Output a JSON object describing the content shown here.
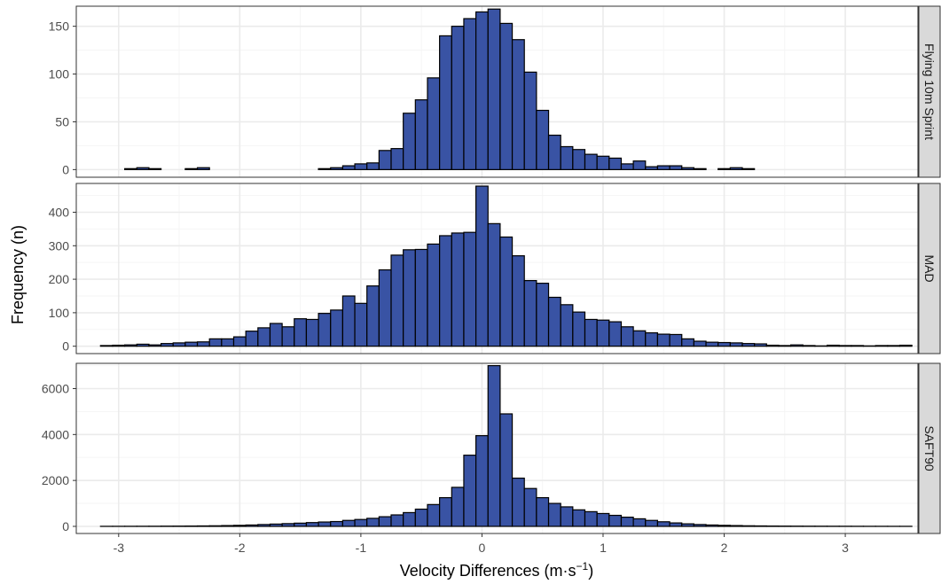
{
  "chart_data": {
    "type": "bar",
    "layout": "faceted histogram, 3 panels stacked vertically, shared x-axis, facet strips on right",
    "xlabel_main": "Velocity Differences (m·s",
    "xlabel_sup": "−1",
    "xlabel_close": ")",
    "ylabel": "Frequency (n)",
    "xlim": [
      -3.35,
      3.6
    ],
    "x_ticks": [
      -3,
      -2,
      -1,
      0,
      1,
      2,
      3
    ],
    "x_tick_labels": [
      "-3",
      "-2",
      "-1",
      "0",
      "1",
      "2",
      "3"
    ],
    "bin_start": -3.15,
    "bin_width": 0.1,
    "grid": true,
    "colors": {
      "fill": "#3953a4",
      "stroke": "#000000",
      "grid_major": "#ebebeb",
      "grid_minor": "#f5f5f5",
      "strip": "#d9d9d9",
      "border": "#333333"
    },
    "panels": [
      {
        "name": "Flying 10m Sprint",
        "ylim": [
          -8,
          171
        ],
        "y_ticks": [
          0,
          50,
          100,
          150
        ],
        "values": [
          0,
          0,
          1,
          2,
          1,
          0,
          0,
          1,
          2,
          0,
          0,
          0,
          0,
          0,
          0,
          0,
          0,
          0,
          1,
          2,
          4,
          6,
          7,
          20,
          22,
          59,
          73,
          96,
          140,
          150,
          158,
          165,
          168,
          153,
          136,
          102,
          62,
          36,
          24,
          21,
          16,
          14,
          12,
          6,
          9,
          3,
          4,
          4,
          2,
          1,
          0,
          1,
          2,
          1,
          0,
          0,
          0,
          0,
          0,
          0,
          0,
          0,
          0,
          0,
          0,
          0,
          0
        ]
      },
      {
        "name": "MAD",
        "ylim": [
          -22,
          486
        ],
        "y_ticks": [
          0,
          100,
          200,
          300,
          400
        ],
        "values": [
          2,
          3,
          4,
          6,
          4,
          8,
          10,
          12,
          13,
          22,
          22,
          28,
          45,
          55,
          68,
          58,
          82,
          80,
          98,
          108,
          150,
          128,
          180,
          228,
          272,
          288,
          289,
          305,
          330,
          338,
          340,
          478,
          366,
          326,
          270,
          196,
          188,
          146,
          124,
          102,
          80,
          78,
          73,
          58,
          46,
          40,
          36,
          35,
          22,
          15,
          12,
          11,
          10,
          8,
          7,
          3,
          2,
          4,
          2,
          1,
          3,
          2,
          2,
          1,
          2,
          2,
          3
        ]
      },
      {
        "name": "SAFT90",
        "ylim": [
          -310,
          7100
        ],
        "y_ticks": [
          0,
          2000,
          4000,
          6000
        ],
        "values": [
          2,
          3,
          4,
          5,
          6,
          10,
          12,
          15,
          20,
          25,
          35,
          45,
          60,
          80,
          100,
          120,
          140,
          165,
          190,
          210,
          260,
          300,
          350,
          420,
          500,
          600,
          750,
          950,
          1250,
          1700,
          3100,
          3950,
          7000,
          4900,
          2100,
          1650,
          1250,
          1000,
          850,
          720,
          640,
          560,
          480,
          400,
          330,
          260,
          200,
          150,
          110,
          80,
          60,
          45,
          35,
          25,
          20,
          15,
          12,
          10,
          8,
          7,
          6,
          5,
          4,
          3,
          3,
          2,
          2
        ]
      }
    ]
  }
}
